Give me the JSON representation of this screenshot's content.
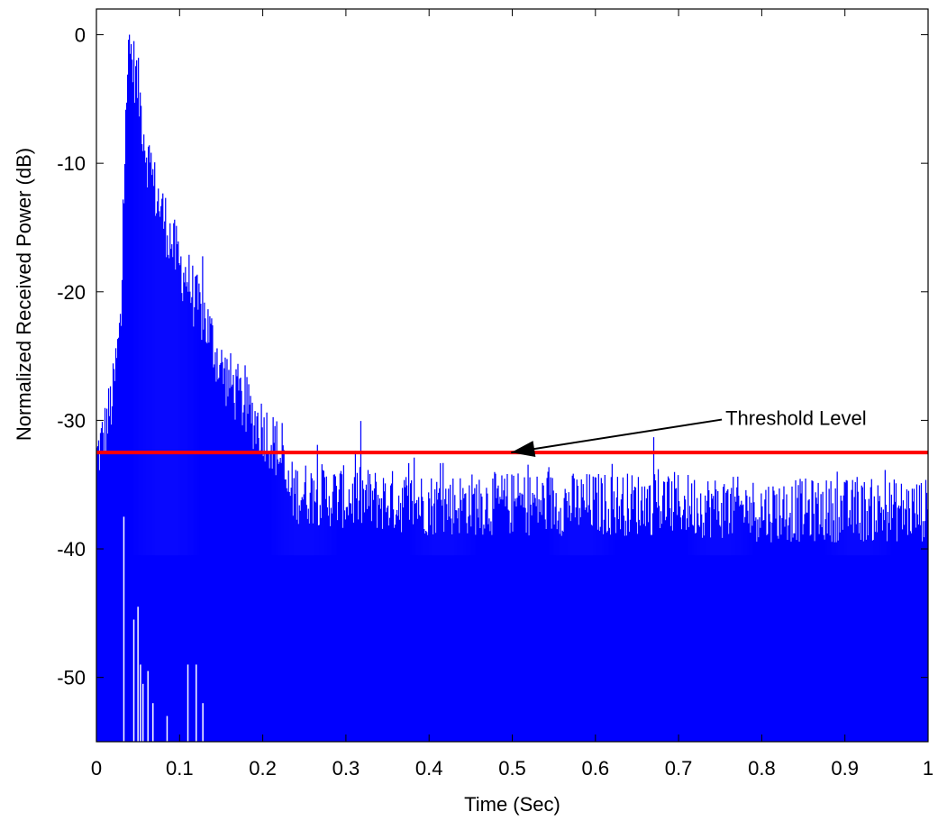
{
  "chart_data": {
    "type": "area",
    "title": "",
    "xlabel": "Time (Sec)",
    "ylabel": "Normalized Received Power (dB)",
    "xlim": [
      0,
      1
    ],
    "ylim": [
      -55,
      2
    ],
    "xticks": [
      0,
      0.1,
      0.2,
      0.3,
      0.4,
      0.5,
      0.6,
      0.7,
      0.8,
      0.9,
      1
    ],
    "xtick_labels": [
      "0",
      "0.1",
      "0.2",
      "0.3",
      "0.4",
      "0.5",
      "0.6",
      "0.7",
      "0.8",
      "0.9",
      "1"
    ],
    "yticks": [
      0,
      -10,
      -20,
      -30,
      -40,
      -50
    ],
    "ytick_labels": [
      "0",
      "-10",
      "-20",
      "-30",
      "-40",
      "-50"
    ],
    "grid": false,
    "series": [
      {
        "color": "#0000ff",
        "envelope": {
          "x": [
            0,
            0.01,
            0.02,
            0.03,
            0.035,
            0.04,
            0.05,
            0.06,
            0.07,
            0.08,
            0.09,
            0.1,
            0.11,
            0.12,
            0.13,
            0.14,
            0.15,
            0.16,
            0.17,
            0.18,
            0.19,
            0.2,
            0.21,
            0.22,
            0.23,
            0.3,
            0.4,
            0.5,
            0.6,
            0.7,
            0.8,
            0.9,
            1.0
          ],
          "y": [
            -33,
            -31,
            -28,
            -22,
            -5,
            -1,
            -4,
            -9,
            -12,
            -14,
            -16,
            -18,
            -19,
            -21,
            -22,
            -24,
            -26,
            -27,
            -28,
            -29,
            -30,
            -30.5,
            -31.5,
            -32.5,
            -35.5,
            -36,
            -36.5,
            -36.5,
            -36.5,
            -36.5,
            -37,
            -37,
            -37
          ]
        },
        "spike_amplitude_db": 2.5,
        "deep_notches": [
          {
            "x": 0.033,
            "y": -37.5
          },
          {
            "x": 0.045,
            "y": -45.5
          },
          {
            "x": 0.05,
            "y": -44.5
          },
          {
            "x": 0.053,
            "y": -49
          },
          {
            "x": 0.056,
            "y": -50.5
          },
          {
            "x": 0.062,
            "y": -49.5
          },
          {
            "x": 0.068,
            "y": -52
          },
          {
            "x": 0.085,
            "y": -53
          },
          {
            "x": 0.11,
            "y": -49
          },
          {
            "x": 0.12,
            "y": -49
          },
          {
            "x": 0.128,
            "y": -52
          }
        ]
      }
    ],
    "threshold": {
      "y": -32.5,
      "color": "#ff0000"
    },
    "annotations": [
      {
        "text": "Threshold Level",
        "x": 0.7,
        "y": -30.5,
        "arrow_to": {
          "x": 0.49,
          "y": -32.5
        }
      }
    ]
  }
}
